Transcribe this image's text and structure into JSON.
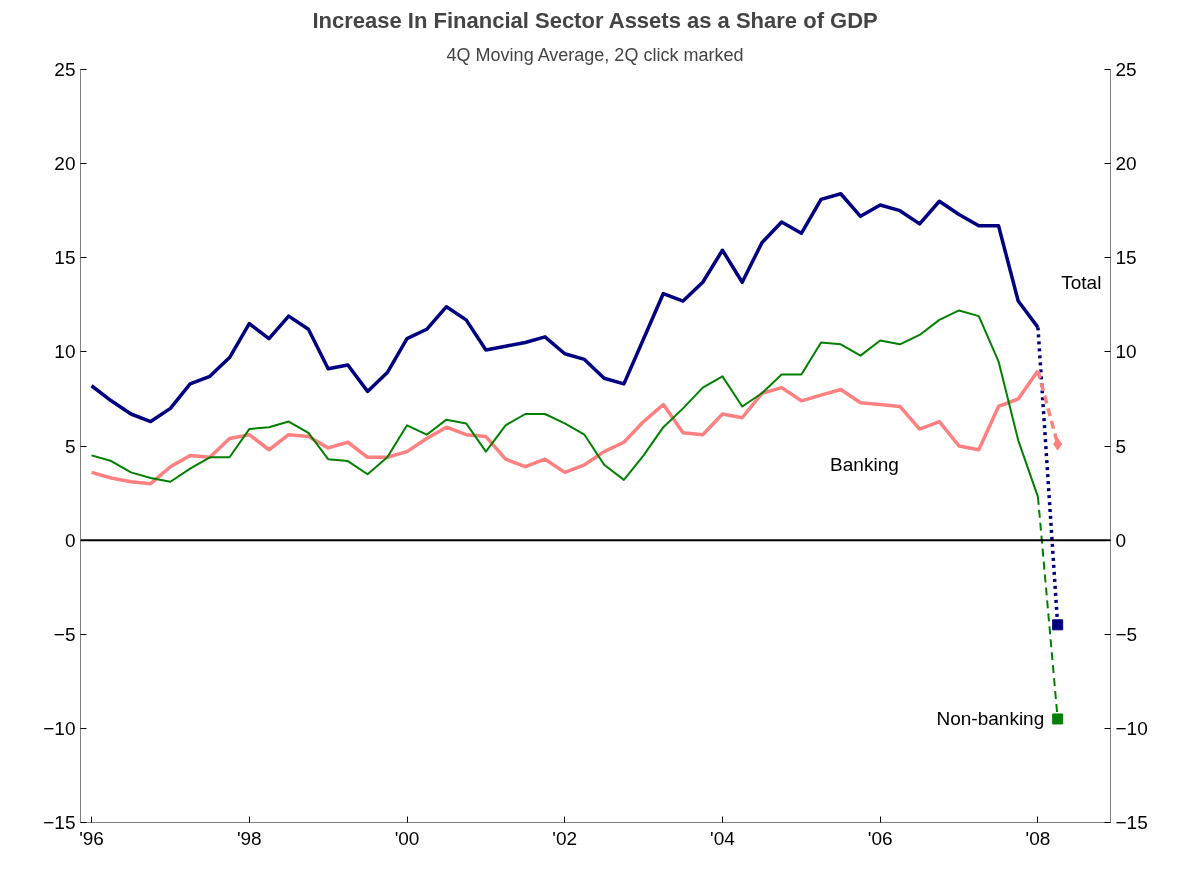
{
  "chart_data": {
    "type": "line",
    "title": "Increase In Financial Sector Assets as a Share of GDP",
    "subtitle": "4Q Moving Average, 2Q click marked",
    "x": [
      1996,
      1996.25,
      1996.5,
      1996.75,
      1997,
      1997.25,
      1997.5,
      1997.75,
      1998,
      1998.25,
      1998.5,
      1998.75,
      1999,
      1999.25,
      1999.5,
      1999.75,
      2000,
      2000.25,
      2000.5,
      2000.75,
      2001,
      2001.25,
      2001.5,
      2001.75,
      2002,
      2002.25,
      2002.5,
      2002.75,
      2003,
      2003.25,
      2003.5,
      2003.75,
      2004,
      2004.25,
      2004.5,
      2004.75,
      2005,
      2005.25,
      2005.5,
      2005.75,
      2006,
      2006.25,
      2006.5,
      2006.75,
      2007,
      2007.25,
      2007.5,
      2007.75,
      2008,
      2008.25
    ],
    "series": [
      {
        "name": "Total",
        "color": "#000080",
        "values": [
          8.2,
          7.4,
          6.7,
          6.3,
          7.0,
          8.3,
          8.7,
          9.7,
          11.5,
          10.7,
          11.9,
          11.2,
          9.1,
          9.3,
          7.9,
          8.9,
          10.7,
          11.2,
          12.4,
          11.7,
          10.1,
          10.3,
          10.5,
          10.8,
          9.9,
          9.6,
          8.6,
          8.3,
          10.7,
          13.1,
          12.7,
          13.7,
          15.4,
          13.7,
          15.8,
          16.9,
          16.3,
          18.1,
          18.4,
          17.2,
          17.8,
          17.5,
          16.8,
          18.0,
          17.3,
          16.7,
          16.7,
          12.7,
          11.3,
          null
        ]
      },
      {
        "name": "Banking",
        "color": "#ff8080",
        "values": [
          3.6,
          3.3,
          3.1,
          3.0,
          3.9,
          4.5,
          4.4,
          5.4,
          5.6,
          4.8,
          5.6,
          5.5,
          4.9,
          5.2,
          4.4,
          4.4,
          4.7,
          5.4,
          6.0,
          5.6,
          5.5,
          4.3,
          3.9,
          4.3,
          3.6,
          4.0,
          4.7,
          5.2,
          6.3,
          7.2,
          5.7,
          5.6,
          6.7,
          6.5,
          7.8,
          8.1,
          7.4,
          7.7,
          8.0,
          7.3,
          7.2,
          7.1,
          5.9,
          6.3,
          5.0,
          4.8,
          7.1,
          7.5,
          9.0,
          null
        ]
      },
      {
        "color": "#008000",
        "values": [
          4.5,
          4.2,
          3.6,
          3.3,
          3.1,
          3.8,
          4.4,
          4.4,
          5.9,
          6.0,
          6.3,
          5.7,
          4.3,
          4.2,
          3.5,
          4.4,
          6.1,
          5.6,
          6.4,
          6.2,
          4.7,
          6.1,
          6.7,
          6.7,
          6.2,
          5.6,
          4.0,
          3.2,
          4.5,
          6.0,
          7.0,
          8.1,
          8.7,
          7.1,
          7.8,
          8.8,
          8.8,
          10.5,
          10.4,
          9.8,
          10.6,
          10.4,
          10.9,
          11.7,
          12.2,
          11.9,
          9.5,
          5.3,
          2.3,
          null
        ]
      },
      {
        "color": "#000080",
        "values": [
          null,
          null,
          null,
          null,
          null,
          null,
          null,
          null,
          null,
          null,
          null,
          null,
          null,
          null,
          null,
          null,
          null,
          null,
          null,
          null,
          null,
          null,
          null,
          null,
          null,
          null,
          null,
          null,
          null,
          null,
          null,
          null,
          null,
          null,
          null,
          null,
          null,
          null,
          null,
          null,
          null,
          null,
          null,
          null,
          null,
          null,
          null,
          null,
          11.3,
          -4.5
        ],
        "line_style": "dotted",
        "marker": "square"
      },
      {
        "color": "#ff8080",
        "values": [
          null,
          null,
          null,
          null,
          null,
          null,
          null,
          null,
          null,
          null,
          null,
          null,
          null,
          null,
          null,
          null,
          null,
          null,
          null,
          null,
          null,
          null,
          null,
          null,
          null,
          null,
          null,
          null,
          null,
          null,
          null,
          null,
          null,
          null,
          null,
          null,
          null,
          null,
          null,
          null,
          null,
          null,
          null,
          null,
          null,
          null,
          null,
          null,
          9.0,
          5.1
        ],
        "line_style": "dashed",
        "marker": "diamond"
      },
      {
        "name": "Non-banking",
        "color": "#008000",
        "values": [
          null,
          null,
          null,
          null,
          null,
          null,
          null,
          null,
          null,
          null,
          null,
          null,
          null,
          null,
          null,
          null,
          null,
          null,
          null,
          null,
          null,
          null,
          null,
          null,
          null,
          null,
          null,
          null,
          null,
          null,
          null,
          null,
          null,
          null,
          null,
          null,
          null,
          null,
          null,
          null,
          null,
          null,
          null,
          null,
          null,
          null,
          null,
          null,
          2.3,
          -9.5
        ],
        "line_style": "dashed",
        "marker": "square"
      }
    ],
    "xlim": [
      1995.86,
      2008.92
    ],
    "xticks": [
      {
        "value": 1996,
        "label": "'96"
      },
      {
        "value": 1998,
        "label": "'98"
      },
      {
        "value": 2000,
        "label": "'00"
      },
      {
        "value": 2002,
        "label": "'02"
      },
      {
        "value": 2004,
        "label": "'04"
      },
      {
        "value": 2006,
        "label": "'06"
      },
      {
        "value": 2008,
        "label": "'08"
      }
    ],
    "ylim": [
      -15,
      25
    ],
    "yticks": [
      -15,
      -10,
      -5,
      0,
      5,
      10,
      15,
      20,
      25
    ],
    "y2lim": [
      -15,
      25
    ],
    "y2ticks": [
      -15,
      -10,
      -5,
      0,
      5,
      10,
      15,
      20,
      25
    ],
    "ref_lines": [
      {
        "axis": "y",
        "value": 0,
        "color": "#000000"
      }
    ],
    "grid": false,
    "line_style": "solid",
    "marker": "none"
  }
}
